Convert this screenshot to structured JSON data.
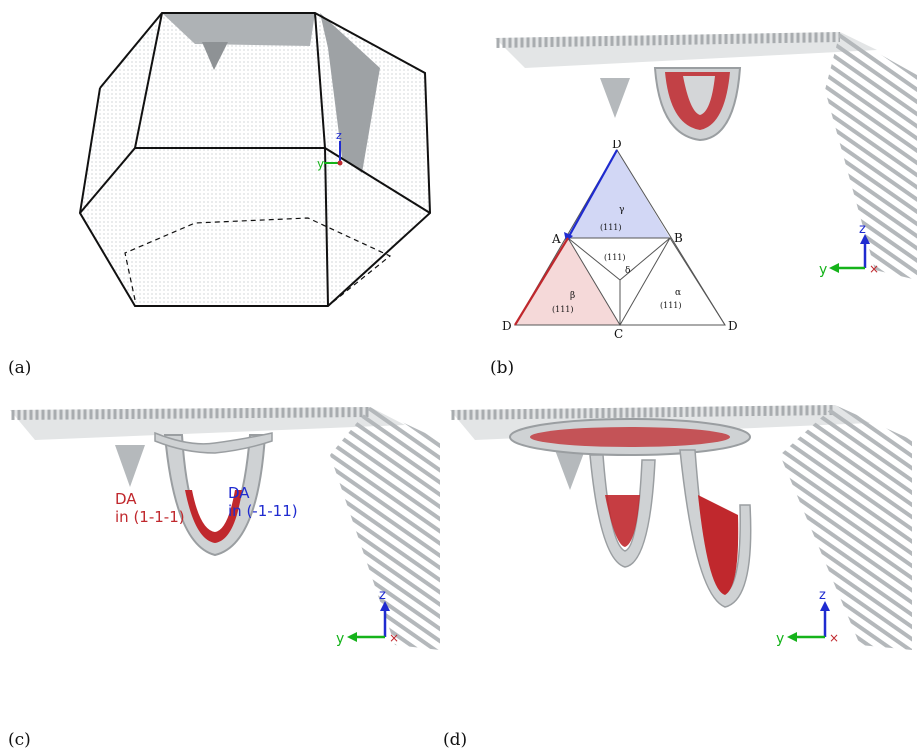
{
  "captions": {
    "a": "(a)",
    "b": "(b)",
    "c": "(c)",
    "d": "(d)"
  },
  "axes": {
    "y": "y",
    "z": "z"
  },
  "thompson": {
    "vertices": {
      "top": "D",
      "a": "A",
      "b": "B",
      "c": "C",
      "left": "D",
      "right": "D"
    },
    "planes": {
      "gamma": "(111)",
      "delta": "(111)",
      "beta": "(111)",
      "alpha": "(111)"
    },
    "greek": {
      "gamma": "γ",
      "delta": "δ",
      "beta": "β",
      "alpha": "α"
    }
  },
  "panel_c": {
    "label_red_1": "DA",
    "label_red_2": "in (1-1-1)",
    "label_blue_1": "DA",
    "label_blue_2": "in (-1-11)"
  },
  "colors": {
    "red": "#c0282d",
    "blue": "#1f2bd0",
    "green": "#15b31a",
    "atom": "#d9d9d9"
  }
}
